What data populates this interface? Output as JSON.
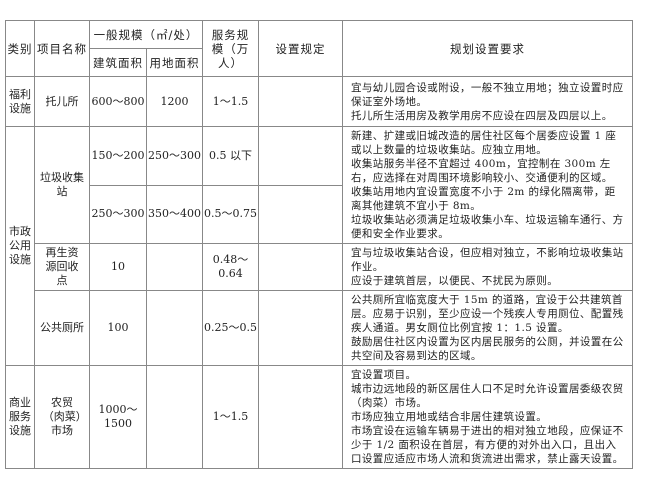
{
  "header": {
    "category": "类别",
    "name": "项目名称",
    "scale_group": "一般规模（㎡/处）",
    "building_area": "建筑面积",
    "land_area": "用地面积",
    "service_scale": "服务规模（万人）",
    "rules": "设置规定",
    "requirements": "规划设置要求"
  },
  "rows": [
    {
      "category": "福利设施",
      "name": "托儿所",
      "building_area": "600～800",
      "land_area": "1200",
      "service_scale": "1～1.5",
      "requirements": [
        "宜与幼儿园合设或附设，一般不独立用地；独立设置时应保证室外场地。",
        "托儿所生活用房及教学用房不应设在四层及四层以上。"
      ]
    },
    {
      "category": "市政公用设施",
      "name": "垃圾收集站",
      "sub": [
        {
          "building_area": "150～200",
          "land_area": "250～300",
          "service_scale": "0.5 以下"
        },
        {
          "building_area": "250～300",
          "land_area": "350～400",
          "service_scale": "0.5～0.75"
        }
      ],
      "requirements": [
        "新建、扩建或旧城改造的居住社区每个居委应设置 1 座或以上数量的垃圾收集站。应独立用地。",
        "收集站服务半径不宜超过 400m，宜控制在 300m 左右，应选择在对周围环境影响较小、交通便利的区域。",
        "收集站用地内宜设置宽度不小于 2m 的绿化隔离带，距离其他建筑不宜小于 8m。",
        "垃圾收集站必须满足垃圾收集小车、垃圾运输车通行、方便和安全作业要求。"
      ]
    },
    {
      "name": "再生资源回收点",
      "building_area": "10",
      "land_area": "",
      "service_scale": "0.48～0.64",
      "requirements": [
        "宜与垃圾收集站合设，但应相对独立，不影响垃圾收集站作业。",
        "应设于建筑首层，以便民、不扰民为原则。"
      ]
    },
    {
      "name": "公共厕所",
      "building_area": "100",
      "land_area": "",
      "service_scale": "0.25～0.5",
      "requirements": [
        "公共厕所宜临宽度大于 15m 的道路，宜设于公共建筑首层。应易于识别，至少应设一个残疾人专用厕位、配置残疾人通道。男女厕位比例宜按 1：1.5 设置。",
        "鼓励居住社区内设置为区内居民服务的公厕，并设置在公共空间及容易到达的区域。"
      ]
    },
    {
      "category": "商业服务设施",
      "name": "农贸（肉菜）市场",
      "building_area": "1000～1500",
      "land_area": "",
      "service_scale": "1～1.5",
      "requirements": [
        "宜设置项目。",
        "城市边远地段的新区居住人口不足时允许设置居委级农贸（肉菜）市场。",
        "市场应独立用地或结合非居住建筑设置。",
        "市场宜设在运输车辆易于进出的相对独立地段，应保证不少于 1/2 面积设在首层，有方便的对外出入口，且出入口设置应适应市场人流和货流进出需求，禁止露天设置。"
      ]
    }
  ]
}
